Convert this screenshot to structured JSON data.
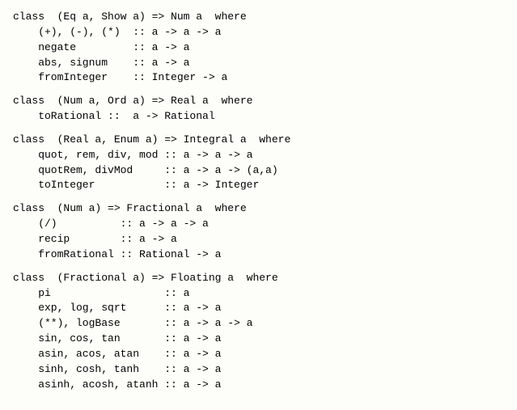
{
  "classes": [
    {
      "header": "class  (Eq a, Show a) => Num a  where",
      "members": [
        "(+), (-), (*)  :: a -> a -> a",
        "negate         :: a -> a",
        "abs, signum    :: a -> a",
        "fromInteger    :: Integer -> a"
      ]
    },
    {
      "header": "class  (Num a, Ord a) => Real a  where",
      "members": [
        "toRational ::  a -> Rational"
      ]
    },
    {
      "header": "class  (Real a, Enum a) => Integral a  where",
      "members": [
        "quot, rem, div, mod :: a -> a -> a",
        "quotRem, divMod     :: a -> a -> (a,a)",
        "toInteger           :: a -> Integer"
      ]
    },
    {
      "header": "class  (Num a) => Fractional a  where",
      "members": [
        "(/)          :: a -> a -> a",
        "recip        :: a -> a",
        "fromRational :: Rational -> a"
      ]
    },
    {
      "header": "class  (Fractional a) => Floating a  where",
      "members": [
        "pi                  :: a",
        "exp, log, sqrt      :: a -> a",
        "(**), logBase       :: a -> a -> a",
        "sin, cos, tan       :: a -> a",
        "asin, acos, atan    :: a -> a",
        "sinh, cosh, tanh    :: a -> a",
        "asinh, acosh, atanh :: a -> a"
      ]
    }
  ]
}
